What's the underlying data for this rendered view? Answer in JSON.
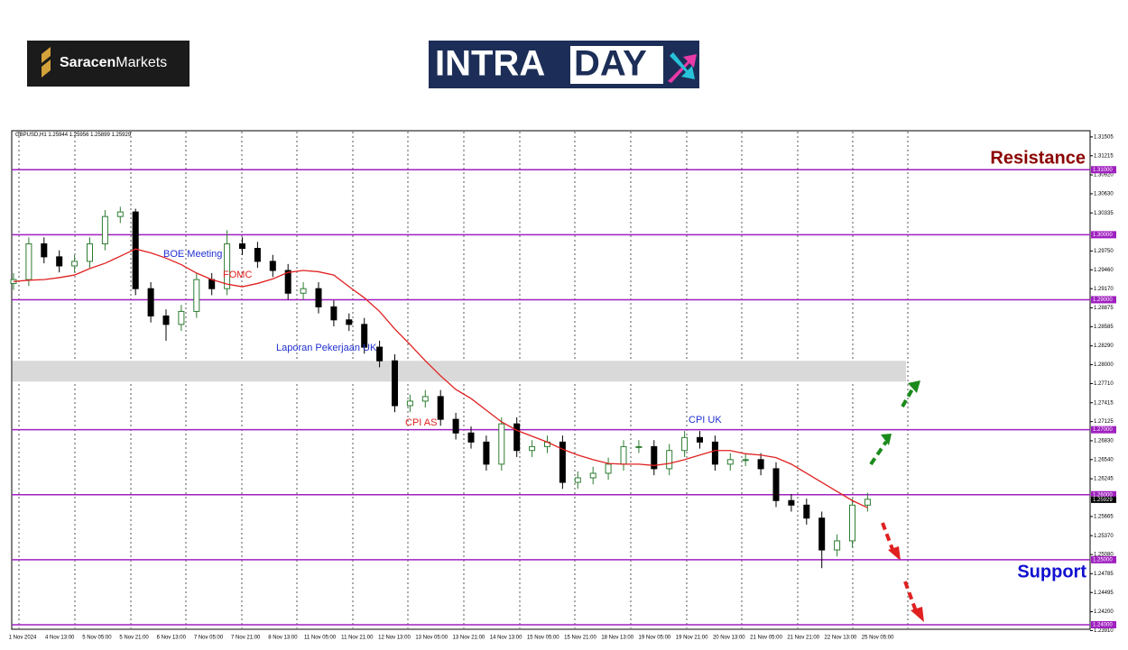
{
  "header": {
    "brand": [
      "Saracen",
      "Markets"
    ],
    "product": [
      "INTRA",
      "DAY"
    ]
  },
  "chart_data": {
    "type": "candlestick",
    "symbol": "GBPUSD,H1",
    "last_ohlc": [
      1.25944,
      1.25956,
      1.25899,
      1.25929
    ],
    "ylim": [
      1.2393,
      1.316
    ],
    "yticks": [
      1.31505,
      1.31215,
      {
        "value": 1.3092,
        "label": "1.30920"
      },
      {
        "value": 1.3063,
        "label": "1.30630"
      },
      1.30335,
      {
        "value": 1.2975,
        "label": "1.29750"
      },
      {
        "value": 1.2946,
        "label": "1.29460"
      },
      {
        "value": 1.2917,
        "label": "1.29170"
      },
      1.28875,
      1.28585,
      {
        "value": 1.2829,
        "label": "1.28290"
      },
      {
        "value": 1.28,
        "label": "1.28000"
      },
      {
        "value": 1.2771,
        "label": "1.27710"
      },
      1.27415,
      1.27125,
      {
        "value": 1.2683,
        "label": "1.26830"
      },
      {
        "value": 1.2654,
        "label": "1.26540"
      },
      1.26245,
      1.25665,
      {
        "value": 1.2537,
        "label": "1.25370"
      },
      {
        "value": 1.2508,
        "label": "1.25080"
      },
      1.24785,
      1.24495,
      {
        "value": 1.242,
        "label": "1.24200"
      },
      {
        "value": 1.2391,
        "label": "1.23910"
      }
    ],
    "x_labels": [
      "1 Nov 2024",
      "4 Nov 13:00",
      "5 Nov 05:00",
      "5 Nov 21:00",
      "6 Nov 13:00",
      "7 Nov 05:00",
      "7 Nov 21:00",
      "8 Nov 13:00",
      "11 Nov 05:00",
      "11 Nov 21:00",
      "12 Nov 13:00",
      "13 Nov 05:00",
      "13 Nov 21:00",
      "14 Nov 13:00",
      "15 Nov 05:00",
      "15 Nov 21:00",
      "18 Nov 13:00",
      "19 Nov 05:00",
      "19 Nov 21:00",
      "20 Nov 13:00",
      "21 Nov 05:00",
      "21 Nov 21:00",
      "22 Nov 13:00",
      "25 Nov 05:00"
    ],
    "up_color": "#2e7d32",
    "down_color": "#000000",
    "open": [
      1.2925,
      1.2931,
      1.2986,
      1.2966,
      1.2952,
      1.2959,
      1.2986,
      1.3028,
      1.3035,
      1.2917,
      1.2875,
      1.2862,
      1.2882,
      1.2931,
      1.2917,
      1.2986,
      1.2979,
      1.2959,
      1.2945,
      1.291,
      1.2917,
      1.2889,
      1.2869,
      1.2862,
      1.2827,
      1.2806,
      1.2737,
      1.2744,
      1.2751,
      1.2716,
      1.2695,
      1.2681,
      1.2647,
      1.2709,
      1.2668,
      1.2674,
      1.2681,
      1.2619,
      1.2626,
      1.2633,
      1.2647,
      1.2674,
      1.2674,
      1.264,
      1.2668,
      1.2688,
      1.2681,
      1.2647,
      1.2654,
      1.2654,
      1.264,
      1.2591,
      1.2584,
      1.2564,
      1.2515,
      1.2529,
      1.2584
    ],
    "high": [
      1.2941,
      1.2996,
      1.2996,
      1.2976,
      1.2969,
      1.2996,
      1.3038,
      1.3043,
      1.304,
      1.2927,
      1.2885,
      1.2892,
      1.2941,
      1.2941,
      1.3007,
      1.2996,
      1.2989,
      1.2969,
      1.2955,
      1.2927,
      1.2927,
      1.2899,
      1.2879,
      1.2872,
      1.2837,
      1.2816,
      1.2754,
      1.2761,
      1.2761,
      1.2726,
      1.2705,
      1.2691,
      1.2719,
      1.2719,
      1.2684,
      1.2691,
      1.2691,
      1.2636,
      1.2643,
      1.2657,
      1.2684,
      1.2684,
      1.2684,
      1.2678,
      1.2698,
      1.2698,
      1.2691,
      1.2664,
      1.2664,
      1.2664,
      1.265,
      1.2601,
      1.2594,
      1.2574,
      1.2539,
      1.2594,
      1.2603
    ],
    "low": [
      1.2915,
      1.2921,
      1.2956,
      1.2942,
      1.2942,
      1.2949,
      1.2976,
      1.3018,
      1.2907,
      1.2865,
      1.2837,
      1.2852,
      1.2872,
      1.2907,
      1.2907,
      1.2969,
      1.2949,
      1.2935,
      1.29,
      1.29,
      1.2879,
      1.2859,
      1.2852,
      1.2817,
      1.2796,
      1.2727,
      1.2727,
      1.2734,
      1.2706,
      1.2685,
      1.2671,
      1.2637,
      1.2637,
      1.2658,
      1.2658,
      1.2664,
      1.2609,
      1.2609,
      1.2616,
      1.2623,
      1.2637,
      1.2664,
      1.263,
      1.263,
      1.2658,
      1.2671,
      1.2637,
      1.2637,
      1.2644,
      1.263,
      1.2581,
      1.2574,
      1.2554,
      1.2487,
      1.2505,
      1.2519,
      1.2574
    ],
    "close": [
      1.2931,
      1.2986,
      1.2966,
      1.2952,
      1.2959,
      1.2986,
      1.3028,
      1.3035,
      1.2917,
      1.2875,
      1.2862,
      1.2882,
      1.2931,
      1.2917,
      1.2986,
      1.2979,
      1.2959,
      1.2945,
      1.291,
      1.2917,
      1.2889,
      1.2869,
      1.2862,
      1.2827,
      1.2806,
      1.2737,
      1.2744,
      1.2751,
      1.2716,
      1.2695,
      1.2681,
      1.2647,
      1.2709,
      1.2668,
      1.2674,
      1.2681,
      1.2619,
      1.2626,
      1.2633,
      1.2647,
      1.2674,
      1.2674,
      1.264,
      1.2668,
      1.2688,
      1.2681,
      1.2647,
      1.2654,
      1.2654,
      1.264,
      1.2591,
      1.2584,
      1.2564,
      1.2515,
      1.2529,
      1.2584,
      1.2593
    ],
    "moving_average": {
      "color": "#e02020",
      "values": [
        1.2928,
        1.293,
        1.2931,
        1.2934,
        1.2938,
        1.2948,
        1.2956,
        1.2967,
        1.2978,
        1.2972,
        1.2964,
        1.2954,
        1.2941,
        1.2931,
        1.2924,
        1.292,
        1.2925,
        1.2932,
        1.2942,
        1.2945,
        1.2943,
        1.2938,
        1.292,
        1.2903,
        1.2882,
        1.2855,
        1.2831,
        1.2806,
        1.2783,
        1.2762,
        1.2748,
        1.273,
        1.2712,
        1.2699,
        1.269,
        1.2681,
        1.267,
        1.2661,
        1.2654,
        1.2648,
        1.2647,
        1.2647,
        1.2645,
        1.2648,
        1.2654,
        1.2661,
        1.2668,
        1.2668,
        1.2663,
        1.2661,
        1.2657,
        1.2647,
        1.2633,
        1.2619,
        1.2605,
        1.2591,
        1.258
      ]
    },
    "level_color": "#a020c0",
    "levels": [
      {
        "value": 1.31,
        "label": "1.31000"
      },
      {
        "value": 1.3,
        "label": "1.30000"
      },
      {
        "value": 1.29,
        "label": "1.29000"
      },
      {
        "value": 1.27,
        "label": "1.27000"
      },
      {
        "value": 1.26,
        "label": "1.26000"
      },
      {
        "value": 1.25,
        "label": "1.25000"
      },
      {
        "value": 1.24,
        "label": "1.24000"
      }
    ],
    "current_price": 1.25929,
    "zone": [
      1.2774,
      1.2806
    ],
    "annotations": [
      {
        "text": "BOE Meeting",
        "color": "#2030d0"
      },
      {
        "text": "FOMC",
        "color": "#e02020"
      },
      {
        "text": "Laporan Pekerjaan UK",
        "color": "#2030d0"
      },
      {
        "text": "CPI AS",
        "color": "#e02020"
      },
      {
        "text": "CPI UK",
        "color": "#2030d0"
      }
    ],
    "resistance": {
      "text": "Resistance",
      "color": "#8b0000"
    },
    "support": {
      "text": "Support",
      "color": "#1010d0"
    }
  }
}
